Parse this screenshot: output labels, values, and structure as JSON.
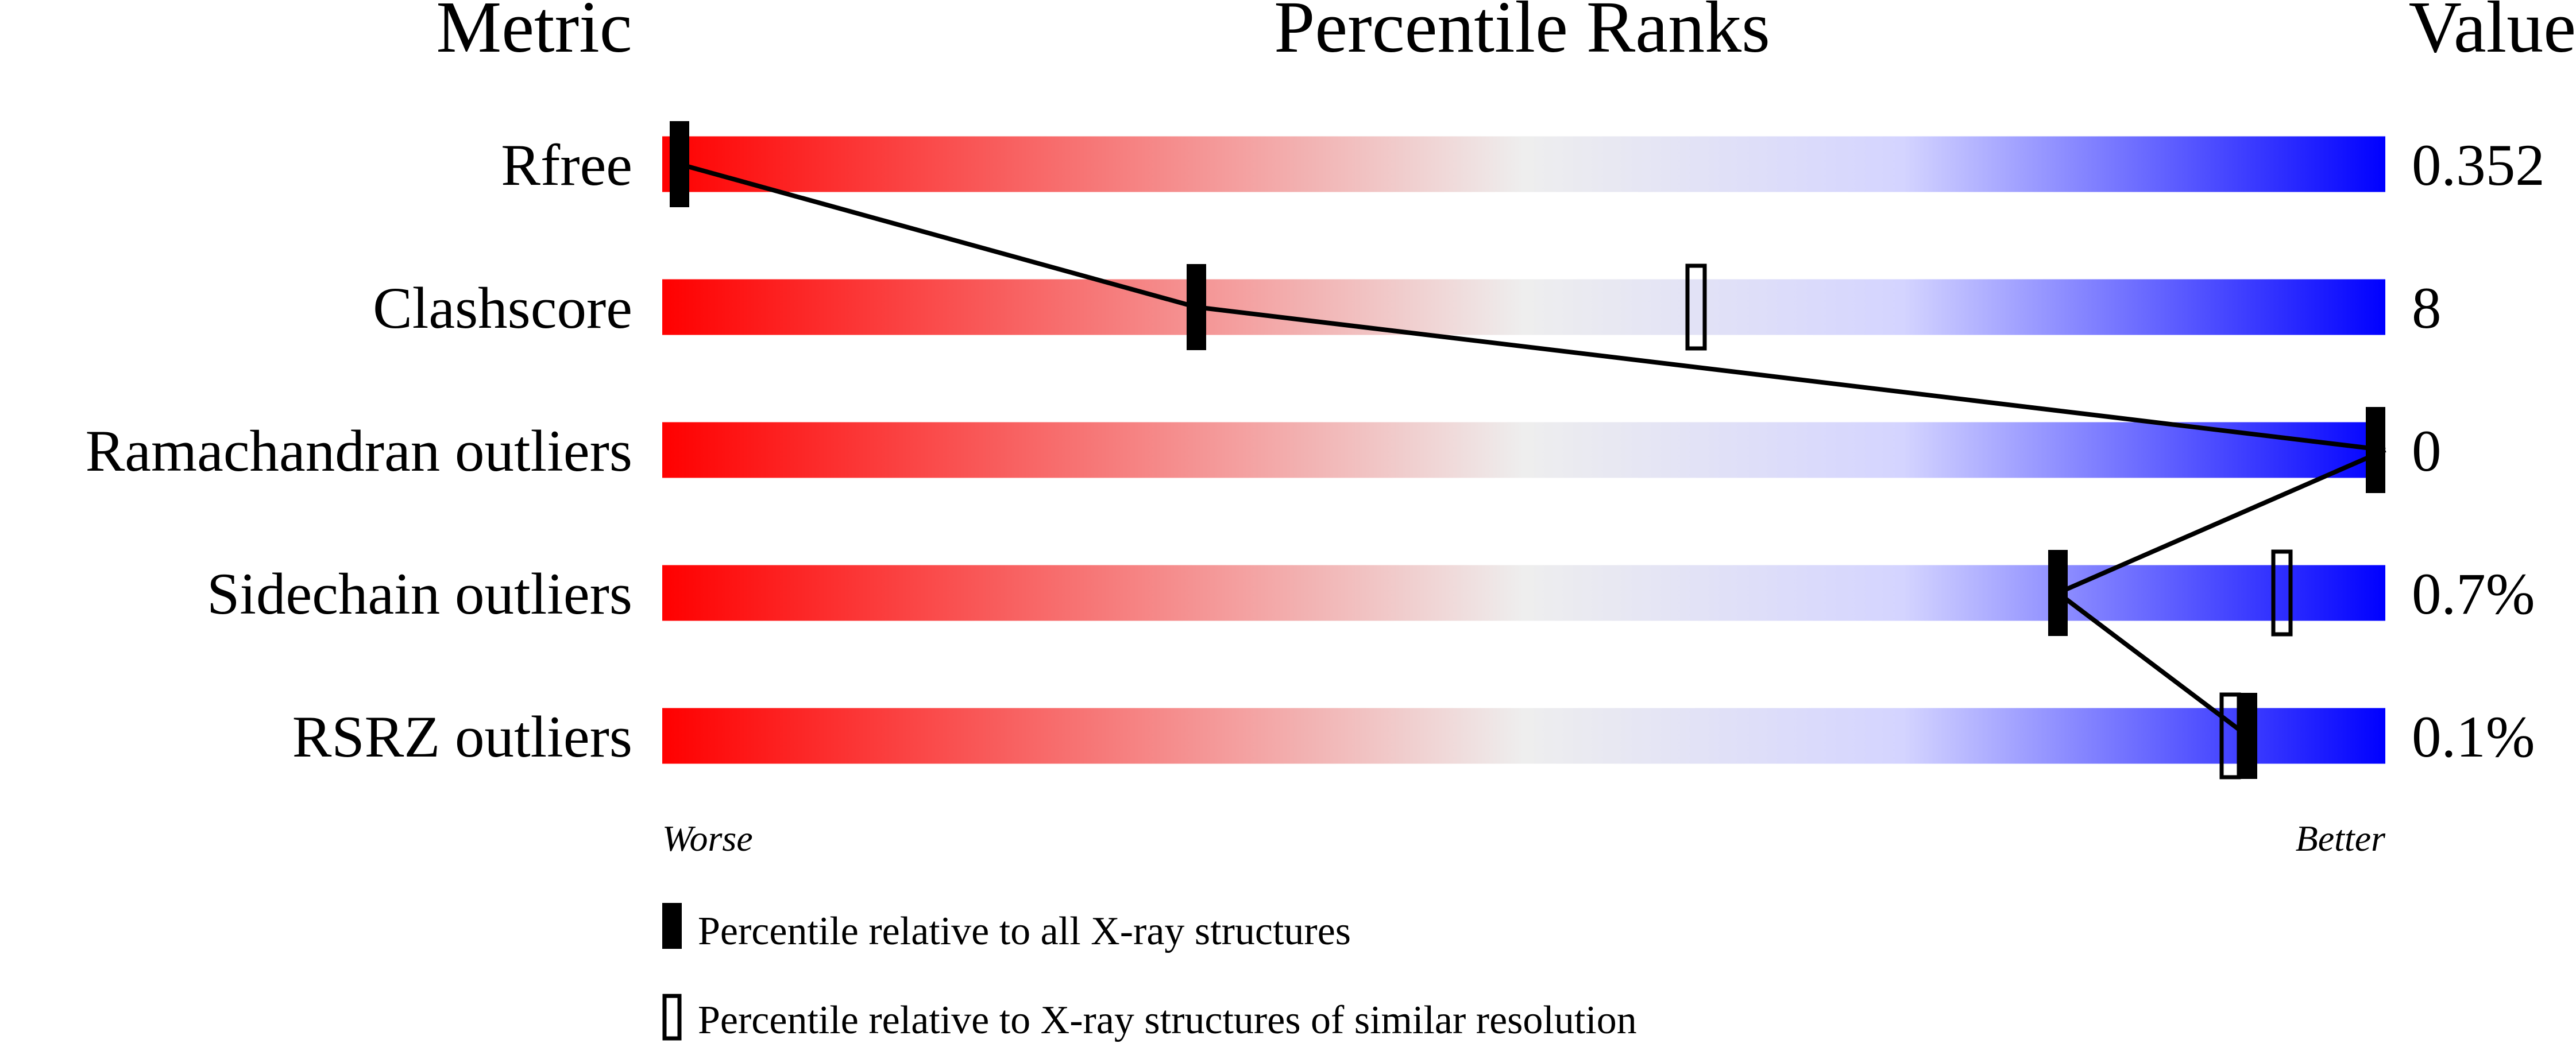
{
  "chart_data": {
    "type": "bar",
    "headers": {
      "metric": "Metric",
      "title": "Percentile Ranks",
      "value": "Value"
    },
    "xlim": [
      0,
      100
    ],
    "categories": [
      "Rfree",
      "Clashscore",
      "Ramachandran outliers",
      "Sidechain outliers",
      "RSRZ outliers"
    ],
    "values": [
      "0.352",
      "8",
      "0",
      "0.7%",
      "0.1%"
    ],
    "series": [
      {
        "name": "Percentile relative to all X-ray structures",
        "marker": "filled",
        "values": [
          1,
          31,
          100,
          81,
          92
        ]
      },
      {
        "name": "Percentile relative to X-ray structures of similar resolution",
        "marker": "open",
        "values": [
          null,
          60,
          null,
          94,
          91
        ]
      }
    ],
    "axis_labels": {
      "left": "Worse",
      "right": "Better"
    },
    "colors": {
      "worse": "#ff0000",
      "middle": "#eeeeee",
      "better": "#0000ff"
    }
  }
}
